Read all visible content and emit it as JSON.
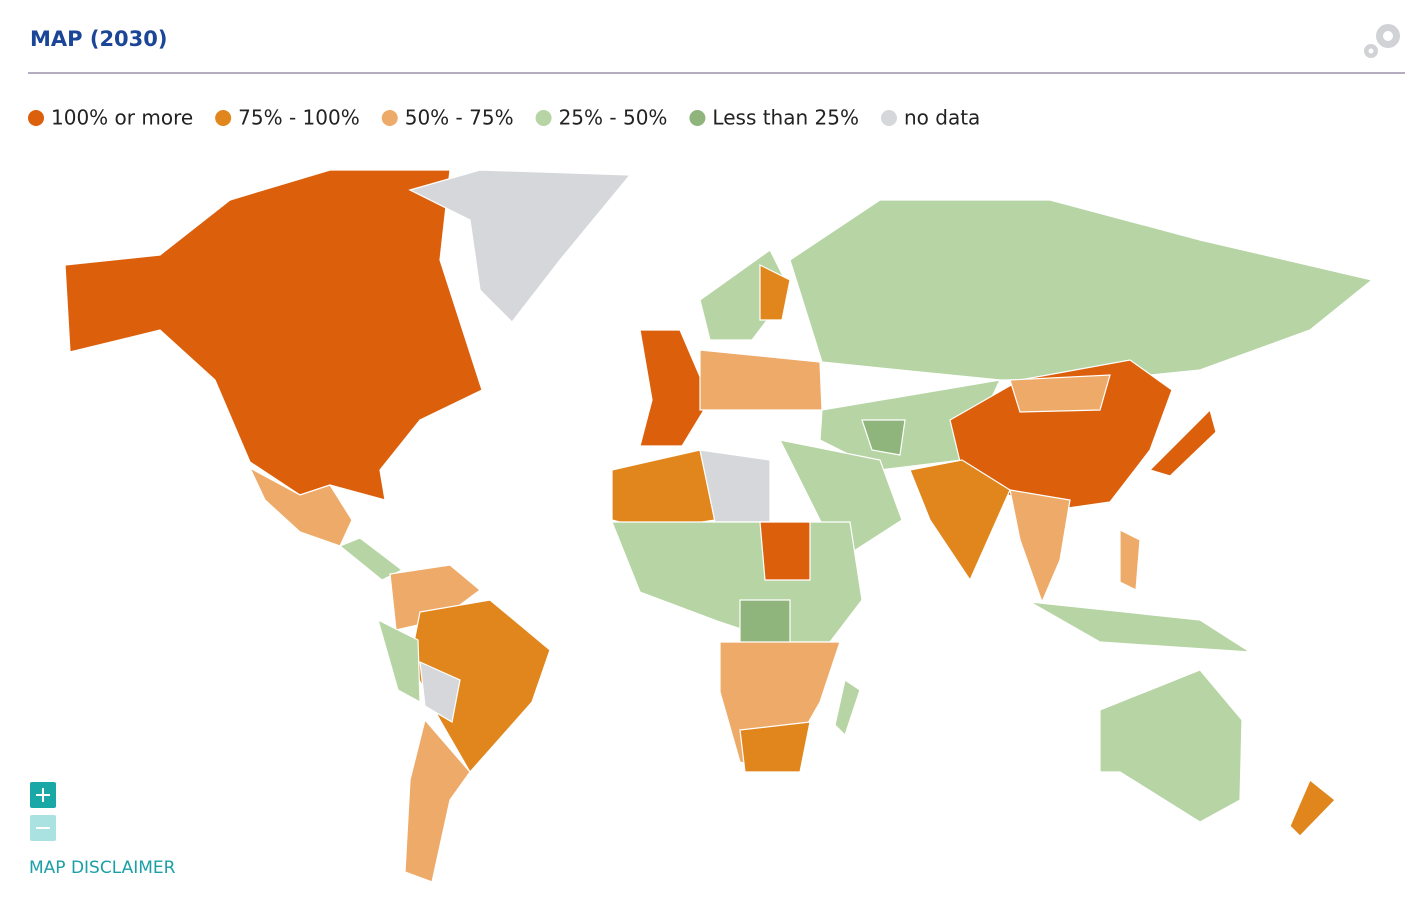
{
  "header": {
    "title": "MAP (2030)"
  },
  "legend": [
    {
      "label": "100% or more",
      "color": "#dc5f0c"
    },
    {
      "label": "75% - 100%",
      "color": "#e0861c"
    },
    {
      "label": "50% - 75%",
      "color": "#eeaa68"
    },
    {
      "label": "25% - 50%",
      "color": "#b6d4a4"
    },
    {
      "label": "Less than 25%",
      "color": "#8fb57c"
    },
    {
      "label": "no data",
      "color": "#d5d7da"
    }
  ],
  "footer": {
    "disclaimer": "MAP DISCLAIMER"
  }
}
